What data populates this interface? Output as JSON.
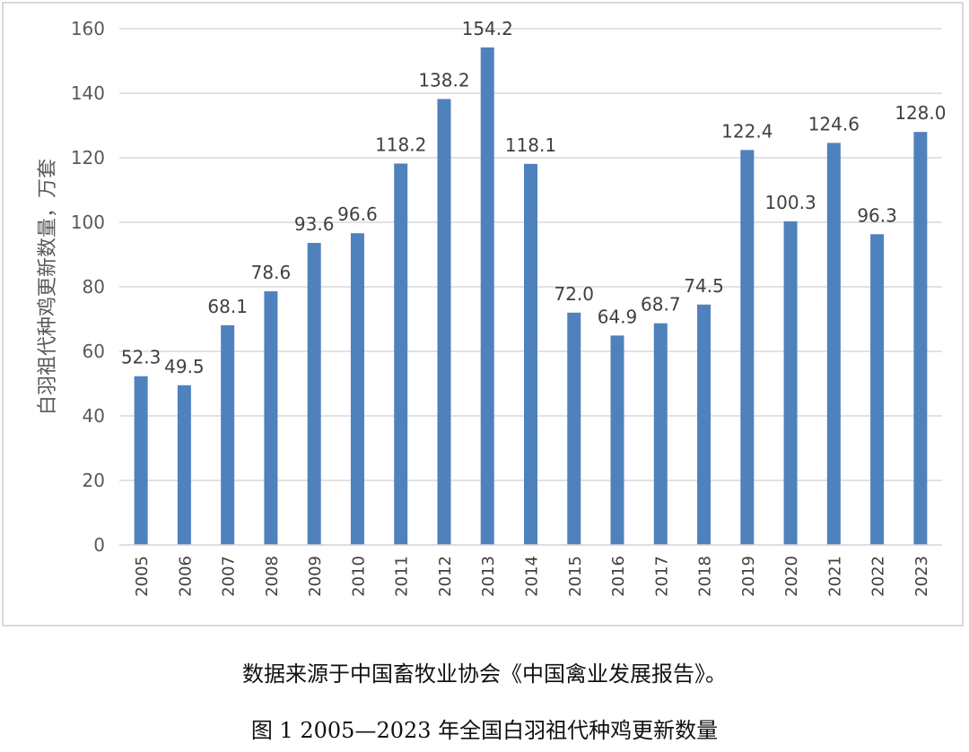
{
  "chart_data": {
    "type": "bar",
    "categories": [
      "2005",
      "2006",
      "2007",
      "2008",
      "2009",
      "2010",
      "2011",
      "2012",
      "2013",
      "2014",
      "2015",
      "2016",
      "2017",
      "2018",
      "2019",
      "2020",
      "2021",
      "2022",
      "2023"
    ],
    "values": [
      52.3,
      49.5,
      68.1,
      78.6,
      93.6,
      96.6,
      118.2,
      138.2,
      154.2,
      118.1,
      72.0,
      64.9,
      68.7,
      74.5,
      122.4,
      100.3,
      124.6,
      96.3,
      128.0
    ],
    "data_labels": [
      "52.3",
      "49.5",
      "68.1",
      "78.6",
      "93.6",
      "96.6",
      "118.2",
      "138.2",
      "154.2",
      "118.1",
      "72.0",
      "64.9",
      "68.7",
      "74.5",
      "122.4",
      "100.3",
      "124.6",
      "96.3",
      "128.0"
    ],
    "ylabel": "白羽祖代种鸡更新数量，万套",
    "xlabel": "",
    "ylim": [
      0,
      160
    ],
    "yticks": [
      "0",
      "20",
      "40",
      "60",
      "80",
      "100",
      "120",
      "140",
      "160"
    ],
    "grid": true,
    "bar_color": "#4f81bd"
  },
  "source_note": "数据来源于中国畜牧业协会《中国禽业发展报告》。",
  "caption": "图 1 2005—2023 年全国白羽祖代种鸡更新数量"
}
